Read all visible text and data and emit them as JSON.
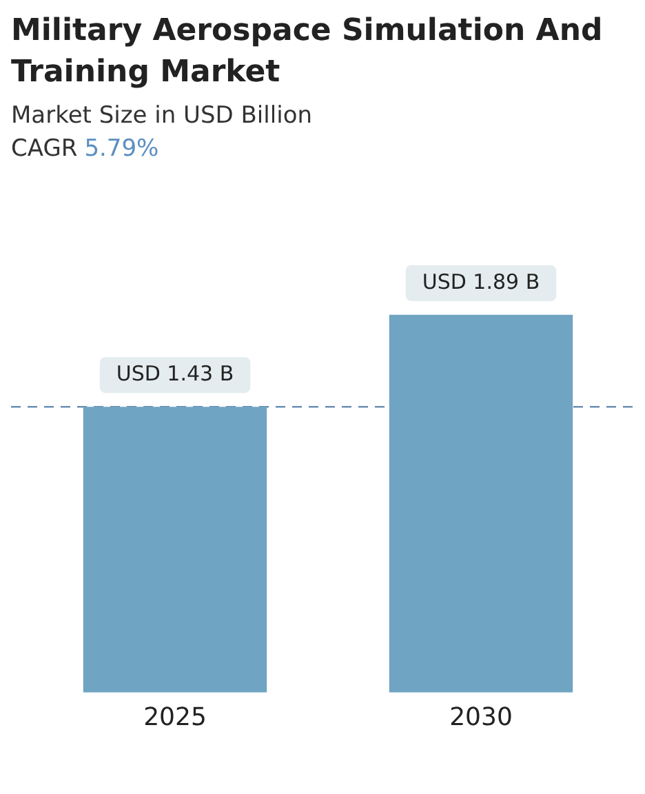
{
  "chart_data": {
    "type": "bar",
    "title": "Military Aerospace Simulation And Training Market",
    "subtitle": "Market Size in USD Billion",
    "annotations": [
      "CAGR",
      "5.79%"
    ],
    "categories": [
      "2025",
      "2030"
    ],
    "values": [
      1.43,
      1.89
    ],
    "value_labels": [
      "USD 1.43 B",
      "USD 1.89 B"
    ],
    "color": "#6fa4c2",
    "relative": false,
    "ref_lines": [
      {
        "axis": "y",
        "value": 1.43,
        "color": "#6a90b2",
        "line_style": "dashed"
      }
    ],
    "grid": false,
    "legend": false
  }
}
